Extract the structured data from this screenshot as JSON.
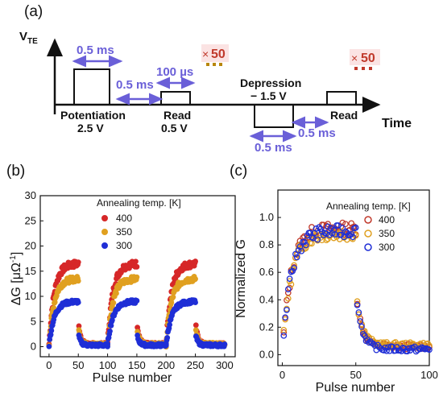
{
  "panel_a": {
    "label": "(a)",
    "y_axis_label_main": "V",
    "y_axis_label_sub": "TE",
    "x_axis_label": "Time",
    "potentiation_width": "0.5 ms",
    "gap1": "0.5 ms",
    "read_width": "100 µs",
    "repeat1_times": "×",
    "repeat1_count": "50",
    "repeat2_times": "×",
    "repeat2_count": "50",
    "potentiation_label": "Potentiation",
    "potentiation_voltage": "2.5 V",
    "read1_label": "Read",
    "read1_voltage": "0.5 V",
    "depression_label": "Depression",
    "depression_voltage": "− 1.5 V",
    "depression_width": "0.5 ms",
    "gap2": "0.5 ms",
    "read2_label": "Read",
    "colors": {
      "arrow": "#6a5fd8",
      "repeat": "#c0392b",
      "dots": "#b8860b"
    }
  },
  "chart_data": [
    {
      "type": "scatter",
      "panel": "(b)",
      "xlabel": "Pulse number",
      "ylabel_main": "ΔG [μΩ",
      "ylabel_sup": "-1",
      "ylabel_end": "]",
      "xlim": [
        -15,
        318
      ],
      "ylim": [
        -2,
        30
      ],
      "xticks": [
        0,
        50,
        100,
        150,
        200,
        250,
        300
      ],
      "yticks": [
        0,
        5,
        10,
        15,
        20,
        25,
        30
      ],
      "legend_title": "Annealing temp. [K]",
      "legend_position": "upper-right",
      "cycles": [
        {
          "up_start": 0,
          "up_end": 50,
          "down_end": 100
        },
        {
          "up_start": 100,
          "up_end": 150,
          "down_end": 200
        },
        {
          "up_start": 200,
          "up_end": 250,
          "down_end": 300
        }
      ],
      "series": [
        {
          "name": "400",
          "color": "#d62728",
          "low": 0.5,
          "high": 16.5,
          "down_start": 5.0
        },
        {
          "name": "350",
          "color": "#e0a020",
          "low": 0.5,
          "high": 13.5,
          "down_start": 4.0
        },
        {
          "name": "300",
          "color": "#1f2ed6",
          "low": 0.3,
          "high": 9.0,
          "down_start": 2.5
        }
      ]
    },
    {
      "type": "scatter",
      "panel": "(c)",
      "xlabel": "Pulse number",
      "ylabel": "Normalized G",
      "xlim": [
        -3,
        100
      ],
      "ylim": [
        -0.08,
        1.2
      ],
      "xticks": [
        0,
        50,
        100
      ],
      "yticks": [
        0.0,
        0.2,
        0.4,
        0.6,
        0.8,
        1.0
      ],
      "legend_title": "Annealing temp. [K]",
      "legend_position": "upper-right",
      "series": [
        {
          "name": "400",
          "color": "#c0392b",
          "fill": "none",
          "peak": 0.92,
          "floor": 0.06
        },
        {
          "name": "350",
          "color": "#e0a020",
          "fill": "none",
          "peak": 0.88,
          "floor": 0.07
        },
        {
          "name": "300",
          "color": "#1f2ed6",
          "fill": "none",
          "peak": 0.9,
          "floor": 0.04
        }
      ]
    }
  ]
}
